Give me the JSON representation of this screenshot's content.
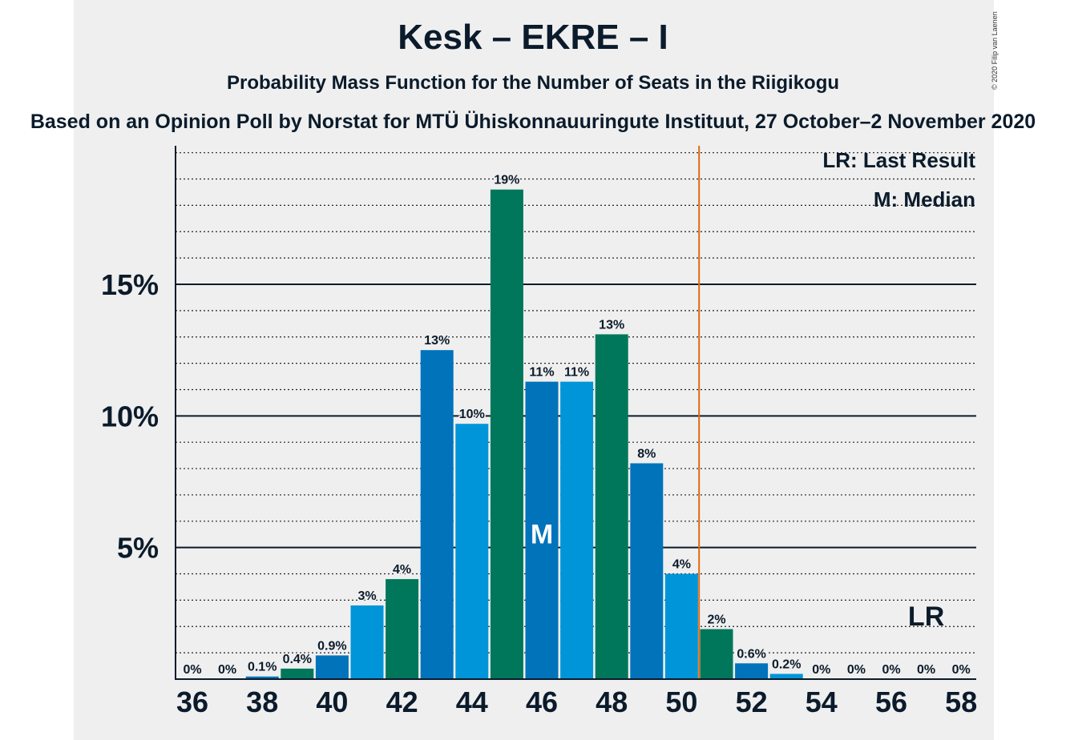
{
  "title": "Kesk – EKRE – I",
  "subtitle": "Probability Mass Function for the Number of Seats in the Riigikogu",
  "source": "Based on an Opinion Poll by Norstat for MTÜ Ühiskonnauuringute Instituut, 27 October–2 November 2020",
  "copyright": "© 2020 Filip van Laenen",
  "legend": {
    "last_result": "LR: Last Result",
    "median": "M: Median"
  },
  "chart_data": {
    "type": "bar",
    "title": "Kesk – EKRE – I",
    "subtitle": "Probability Mass Function for the Number of Seats in the Riigikogu",
    "xlabel": "",
    "ylabel": "",
    "x": [
      36,
      37,
      38,
      39,
      40,
      41,
      42,
      43,
      44,
      45,
      46,
      47,
      48,
      49,
      50,
      51,
      52,
      53,
      54,
      55,
      56,
      57,
      58
    ],
    "values": [
      0,
      0,
      0.1,
      0.4,
      0.9,
      2.8,
      3.8,
      12.5,
      9.7,
      18.6,
      11.3,
      11.3,
      13.1,
      8.2,
      4.0,
      1.9,
      0.6,
      0.2,
      0,
      0,
      0,
      0,
      0
    ],
    "labels": [
      "0%",
      "0%",
      "0.1%",
      "0.4%",
      "0.9%",
      "3%",
      "4%",
      "13%",
      "10%",
      "19%",
      "11%",
      "11%",
      "13%",
      "8%",
      "4%",
      "2%",
      "0.6%",
      "0.2%",
      "0%",
      "0%",
      "0%",
      "0%",
      "0%"
    ],
    "colors": [
      "#0073bb",
      "#0095d9",
      "#0073bb",
      "#00775a",
      "#0073bb",
      "#0095d9",
      "#00775a",
      "#0073bb",
      "#0095d9",
      "#00775a",
      "#0073bb",
      "#0095d9",
      "#00775a",
      "#0073bb",
      "#0095d9",
      "#00775a",
      "#0073bb",
      "#0095d9",
      "#00775a",
      "#0073bb",
      "#0095d9",
      "#00775a",
      "#0073bb"
    ],
    "x_ticks": [
      36,
      38,
      40,
      42,
      44,
      46,
      48,
      50,
      52,
      54,
      56,
      58
    ],
    "y_ticks": [
      5,
      10,
      15
    ],
    "y_tick_labels": [
      "5%",
      "10%",
      "15%"
    ],
    "ylim": [
      0,
      20.3
    ],
    "minor_gridlines_every": 1,
    "median": 46,
    "median_label": "M",
    "majority_line": 50.5,
    "last_result": 57,
    "last_result_label": "LR",
    "majority_line_color": "#e06a10"
  }
}
